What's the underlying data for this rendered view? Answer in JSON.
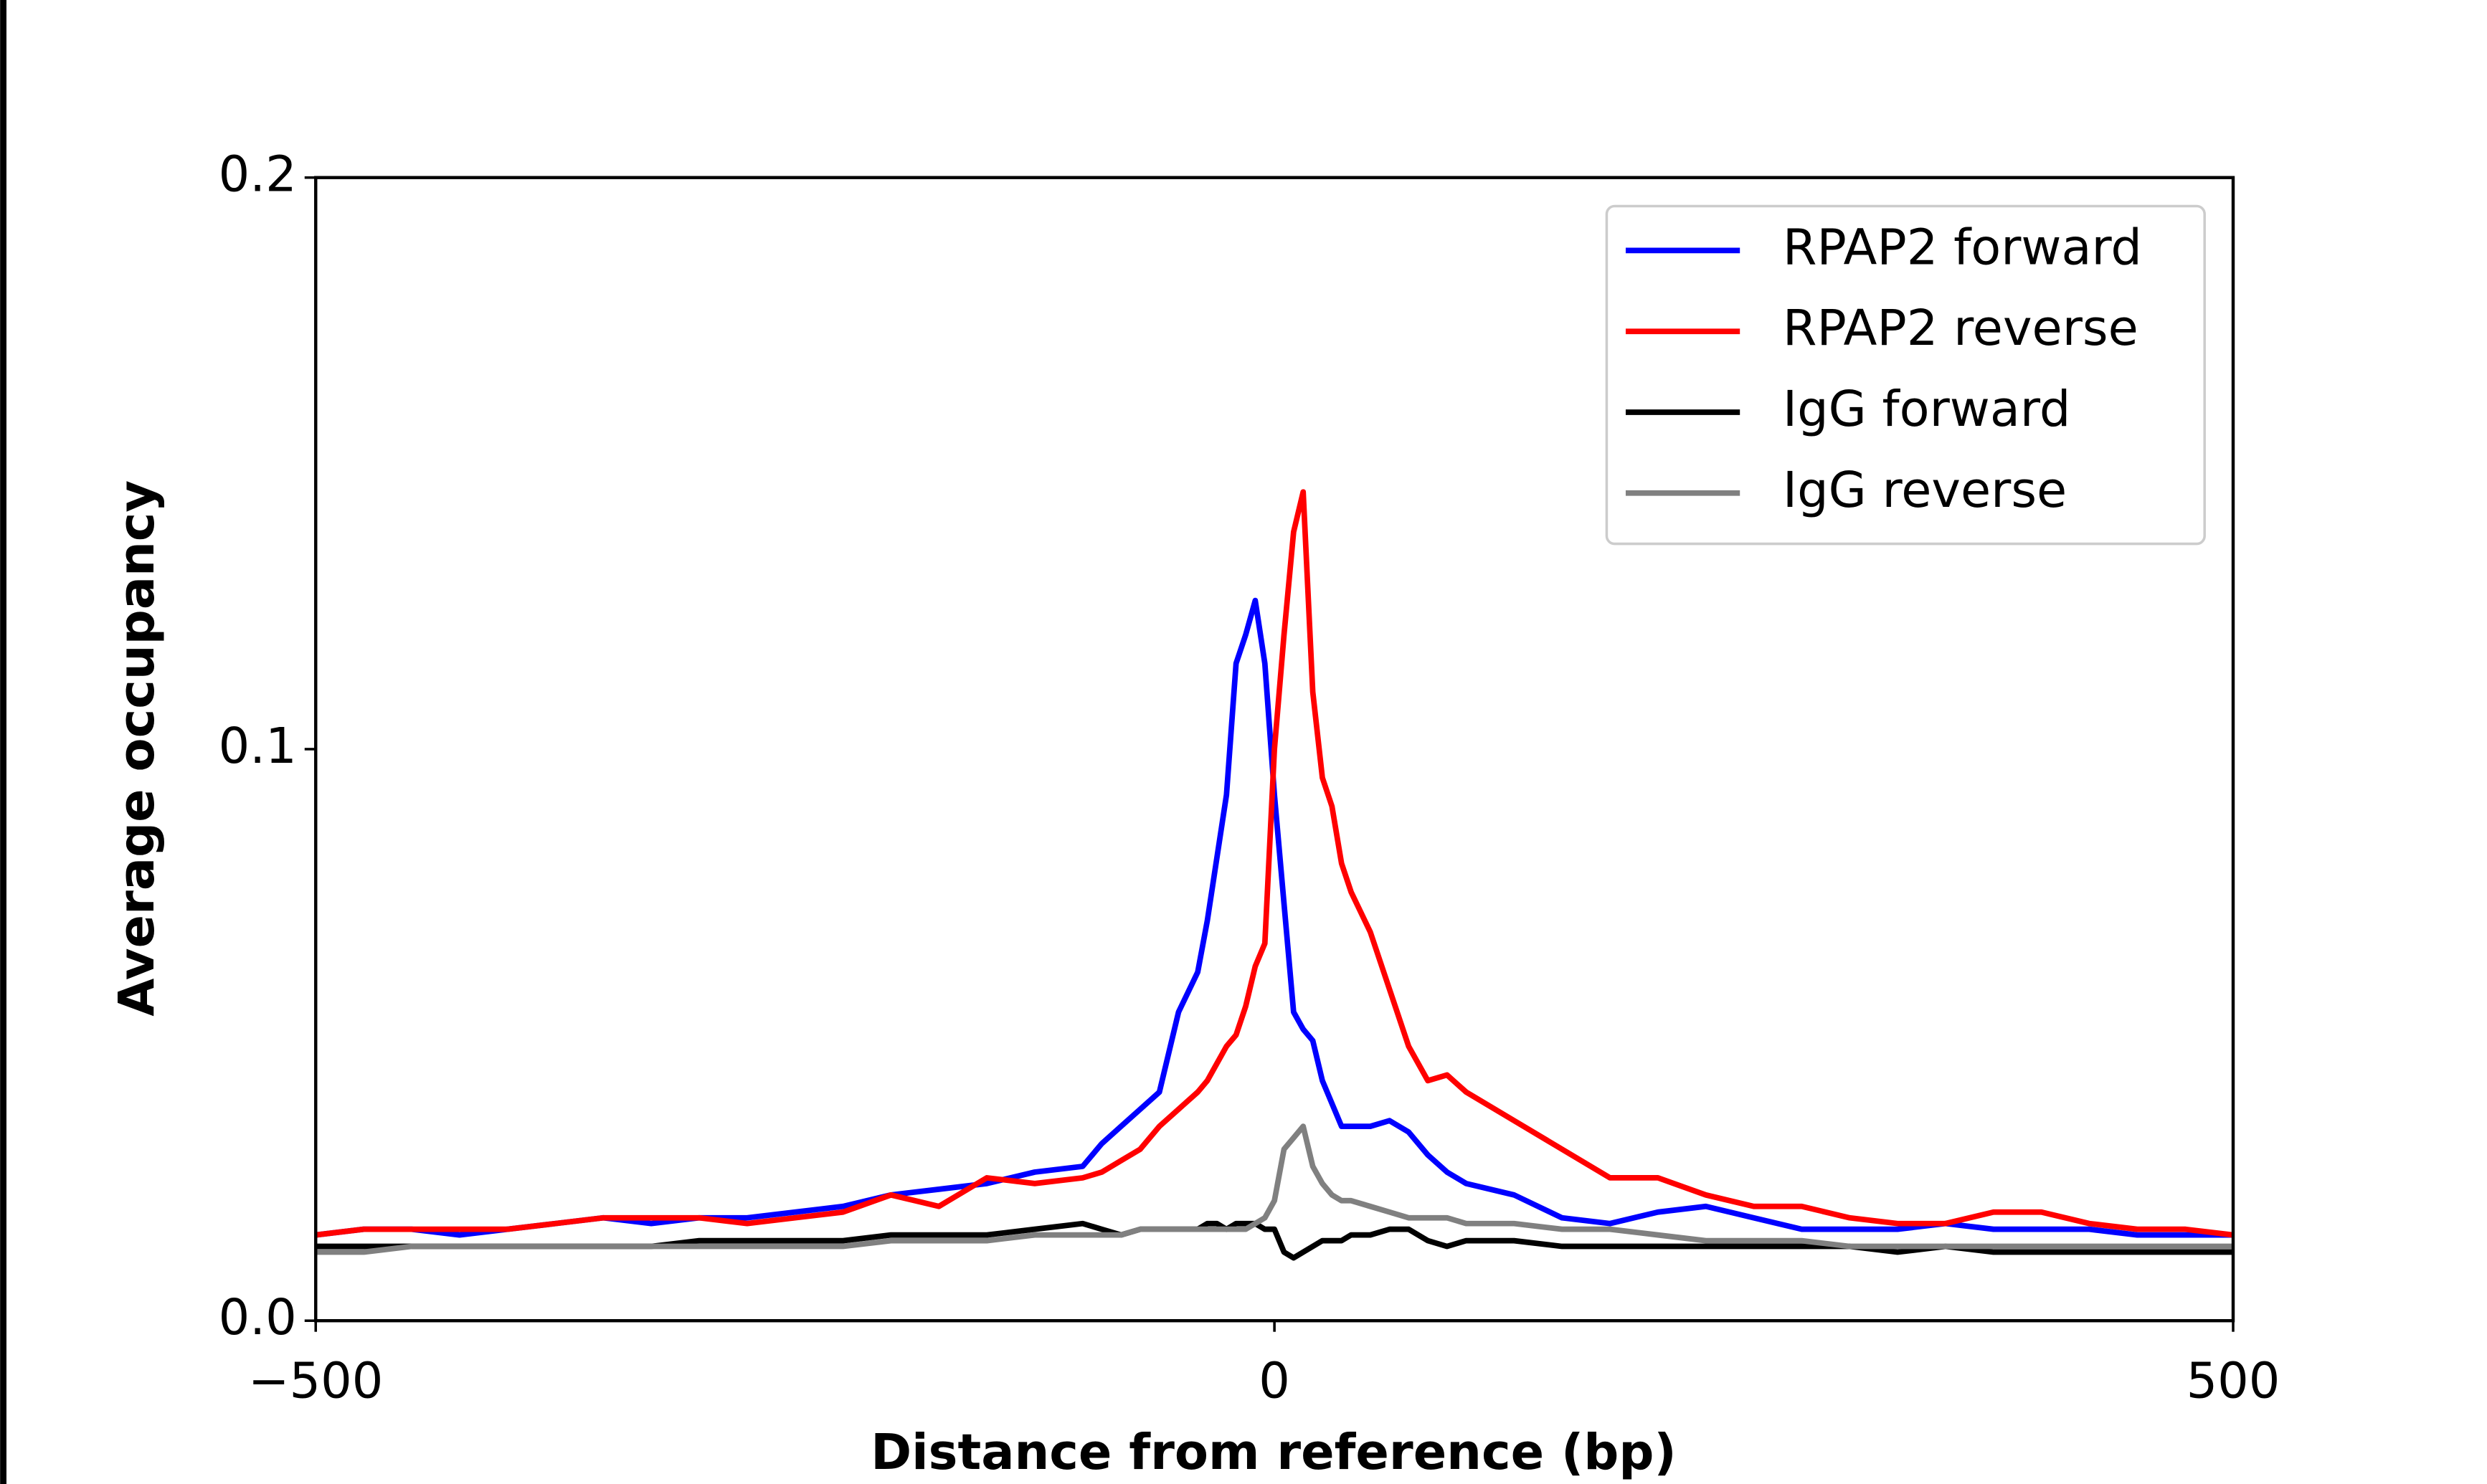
{
  "chart_data": {
    "type": "line",
    "xlabel": "Distance from reference (bp)",
    "ylabel": "Average occupancy",
    "x": [
      -500,
      -475,
      -450,
      -425,
      -400,
      -375,
      -350,
      -325,
      -300,
      -275,
      -250,
      -225,
      -200,
      -175,
      -150,
      -125,
      -100,
      -90,
      -80,
      -70,
      -60,
      -50,
      -40,
      -35,
      -30,
      -25,
      -20,
      -15,
      -10,
      -5,
      0,
      5,
      10,
      15,
      20,
      25,
      30,
      35,
      40,
      50,
      60,
      70,
      80,
      90,
      100,
      125,
      150,
      175,
      200,
      225,
      250,
      275,
      300,
      325,
      350,
      375,
      400,
      425,
      450,
      475,
      500
    ],
    "series": [
      {
        "name": "RPAP2 forward",
        "color": "#0000ff",
        "values": [
          0.015,
          0.016,
          0.016,
          0.015,
          0.016,
          0.017,
          0.018,
          0.017,
          0.018,
          0.018,
          0.019,
          0.02,
          0.022,
          0.023,
          0.024,
          0.026,
          0.027,
          0.031,
          0.034,
          0.037,
          0.04,
          0.054,
          0.061,
          0.07,
          0.081,
          0.092,
          0.115,
          0.12,
          0.126,
          0.115,
          0.092,
          0.073,
          0.054,
          0.051,
          0.049,
          0.042,
          0.038,
          0.034,
          0.034,
          0.034,
          0.035,
          0.033,
          0.029,
          0.026,
          0.024,
          0.022,
          0.018,
          0.017,
          0.019,
          0.02,
          0.018,
          0.016,
          0.016,
          0.016,
          0.017,
          0.016,
          0.016,
          0.016,
          0.015,
          0.015,
          0.015
        ]
      },
      {
        "name": "RPAP2 reverse",
        "color": "#ff0000",
        "values": [
          0.015,
          0.016,
          0.016,
          0.016,
          0.016,
          0.017,
          0.018,
          0.018,
          0.018,
          0.017,
          0.018,
          0.019,
          0.022,
          0.02,
          0.025,
          0.024,
          0.025,
          0.026,
          0.028,
          0.03,
          0.034,
          0.037,
          0.04,
          0.042,
          0.045,
          0.048,
          0.05,
          0.055,
          0.062,
          0.066,
          0.1,
          0.12,
          0.138,
          0.145,
          0.11,
          0.095,
          0.09,
          0.08,
          0.075,
          0.068,
          0.058,
          0.048,
          0.042,
          0.043,
          0.04,
          0.035,
          0.03,
          0.025,
          0.025,
          0.022,
          0.02,
          0.02,
          0.018,
          0.017,
          0.017,
          0.019,
          0.019,
          0.017,
          0.016,
          0.016,
          0.015
        ]
      },
      {
        "name": "IgG forward",
        "color": "#000000",
        "values": [
          0.013,
          0.013,
          0.013,
          0.013,
          0.013,
          0.013,
          0.013,
          0.013,
          0.014,
          0.014,
          0.014,
          0.014,
          0.015,
          0.015,
          0.015,
          0.016,
          0.017,
          0.016,
          0.015,
          0.016,
          0.016,
          0.016,
          0.016,
          0.017,
          0.017,
          0.016,
          0.017,
          0.017,
          0.017,
          0.016,
          0.016,
          0.012,
          0.011,
          0.012,
          0.013,
          0.014,
          0.014,
          0.014,
          0.015,
          0.015,
          0.016,
          0.016,
          0.014,
          0.013,
          0.014,
          0.014,
          0.013,
          0.013,
          0.013,
          0.013,
          0.013,
          0.013,
          0.013,
          0.012,
          0.013,
          0.012,
          0.012,
          0.012,
          0.012,
          0.012,
          0.012
        ]
      },
      {
        "name": "IgG reverse",
        "color": "#808080",
        "values": [
          0.012,
          0.012,
          0.013,
          0.013,
          0.013,
          0.013,
          0.013,
          0.013,
          0.013,
          0.013,
          0.013,
          0.013,
          0.014,
          0.014,
          0.014,
          0.015,
          0.015,
          0.015,
          0.015,
          0.016,
          0.016,
          0.016,
          0.016,
          0.016,
          0.016,
          0.016,
          0.016,
          0.016,
          0.017,
          0.018,
          0.021,
          0.03,
          0.032,
          0.034,
          0.027,
          0.024,
          0.022,
          0.021,
          0.021,
          0.02,
          0.019,
          0.018,
          0.018,
          0.018,
          0.017,
          0.017,
          0.016,
          0.016,
          0.015,
          0.014,
          0.014,
          0.014,
          0.013,
          0.013,
          0.013,
          0.013,
          0.013,
          0.013,
          0.013,
          0.013,
          0.013
        ]
      }
    ],
    "xlim": [
      -500,
      500
    ],
    "xticks": [
      {
        "value": -500,
        "label": "−500"
      },
      0,
      500
    ],
    "ylim": [
      0,
      0.2
    ],
    "yticks": [
      {
        "value": 0,
        "label": "0.0"
      },
      0.1,
      0.2
    ],
    "legend": "upper right",
    "grid": false
  }
}
